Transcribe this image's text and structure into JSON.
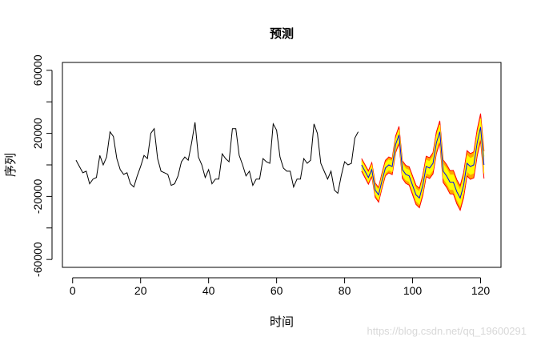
{
  "chart_data": {
    "type": "line",
    "title": "预测",
    "xlabel": "时间",
    "ylabel": "序列",
    "xlim": [
      -3,
      126
    ],
    "ylim": [
      -65000,
      65000
    ],
    "x_ticks": [
      0,
      20,
      40,
      60,
      80,
      100,
      120
    ],
    "x_tick_labels": [
      "0",
      "20",
      "40",
      "60",
      "80",
      "100",
      "120"
    ],
    "y_ticks": [
      -60000,
      -20000,
      20000,
      60000
    ],
    "y_tick_labels": [
      "-60000",
      "-20000",
      "20000",
      "60000"
    ],
    "y_minor_ticks": [
      -40000,
      0,
      40000
    ],
    "grid": false,
    "legend": "none",
    "series": [
      {
        "role": "history",
        "color": "#000000",
        "x": [
          1,
          2,
          3,
          4,
          5,
          6,
          7,
          8,
          9,
          10,
          11,
          12,
          13,
          14,
          15,
          16,
          17,
          18,
          19,
          20,
          21,
          22,
          23,
          24,
          25,
          26,
          27,
          28,
          29,
          30,
          31,
          32,
          33,
          34,
          35,
          36,
          37,
          38,
          39,
          40,
          41,
          42,
          43,
          44,
          45,
          46,
          47,
          48,
          49,
          50,
          51,
          52,
          53,
          54,
          55,
          56,
          57,
          58,
          59,
          60,
          61,
          62,
          63,
          64,
          65,
          66,
          67,
          68,
          69,
          70,
          71,
          72,
          73,
          74,
          75,
          76,
          77,
          78,
          79,
          80,
          81,
          82,
          83,
          84
        ],
        "y": [
          3000,
          -1000,
          -5000,
          -4000,
          -12000,
          -9000,
          -8000,
          6000,
          0,
          5000,
          21000,
          18000,
          4000,
          -3000,
          -6000,
          -5000,
          -12000,
          -14000,
          -7000,
          -1000,
          6000,
          4000,
          20000,
          23000,
          4000,
          -4000,
          -5000,
          -6000,
          -13000,
          -12000,
          -7000,
          2000,
          5000,
          3000,
          14000,
          27000,
          5000,
          0,
          -8000,
          -3000,
          -12000,
          -9000,
          -9000,
          7000,
          4000,
          2000,
          23000,
          23000,
          6000,
          0,
          -7000,
          -4000,
          -13000,
          -9000,
          -9000,
          4000,
          2000,
          1000,
          26000,
          22000,
          5000,
          -2000,
          -4000,
          -4000,
          -14000,
          -9000,
          -9000,
          4000,
          1000,
          3000,
          26000,
          20000,
          1000,
          -4000,
          -9000,
          -4000,
          -16000,
          -18000,
          -7000,
          2000,
          0,
          1000,
          17000,
          21000
        ]
      },
      {
        "role": "forecast",
        "color": "#0000ff",
        "x": [
          85,
          86,
          87,
          88,
          89,
          90,
          91,
          92,
          93,
          94,
          95,
          96,
          97,
          98,
          99,
          100,
          101,
          102,
          103,
          104,
          105,
          106,
          107,
          108,
          109,
          110,
          111,
          112,
          113,
          114,
          115,
          116,
          117,
          118,
          119,
          120,
          121
        ],
        "y": [
          0,
          -4000,
          -8000,
          -3000,
          -16000,
          -19000,
          -10000,
          -2000,
          0,
          -1000,
          13000,
          19000,
          -3000,
          -6000,
          -7000,
          -13000,
          -19000,
          -21000,
          -13000,
          -1000,
          -2000,
          1000,
          14000,
          21000,
          -4000,
          -7000,
          -11000,
          -11000,
          -17000,
          -21000,
          -13000,
          1000,
          -1000,
          0,
          14000,
          24000,
          0
        ]
      }
    ],
    "band_color_outer": "#ff0000",
    "band_color_inner": "#ffff00",
    "band_fill_outer": "#ffa500",
    "band_fill_inner": "#ffff00"
  },
  "watermark": "https://blog.csdn.net/qq_19600291"
}
